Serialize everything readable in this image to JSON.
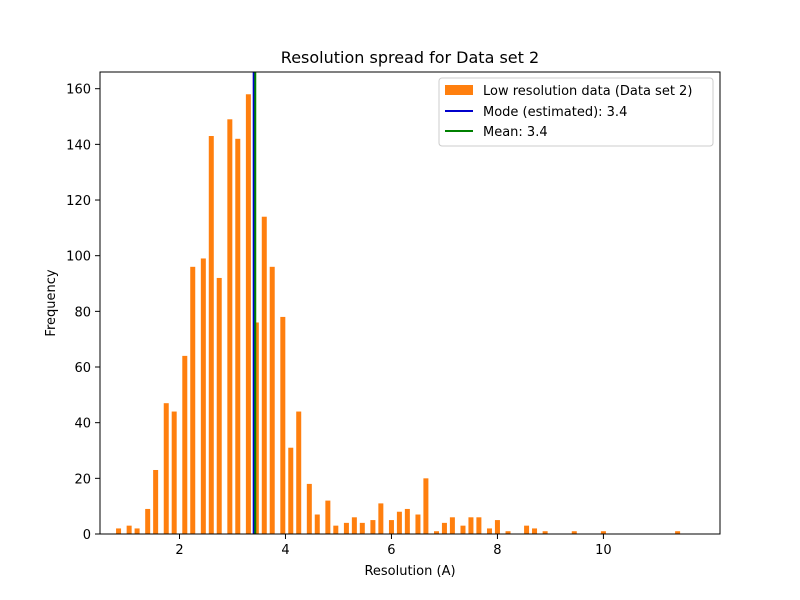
{
  "chart_data": {
    "type": "bar",
    "title": "Resolution spread for Data set 2",
    "xlabel": "Resolution (A)",
    "ylabel": "Frequency",
    "xlim": [
      0.5,
      12.2
    ],
    "ylim": [
      0,
      166
    ],
    "xticks": [
      2,
      4,
      6,
      8,
      10
    ],
    "yticks": [
      0,
      20,
      40,
      60,
      80,
      100,
      120,
      140,
      160
    ],
    "grid": false,
    "legend_position": "top-right",
    "colors": {
      "bars": "#ff7f0e",
      "mode": "#0000cc",
      "mean": "#008000"
    },
    "series": [
      {
        "name": "Low resolution data (Data set 2)",
        "x": [
          0.85,
          1.05,
          1.2,
          1.4,
          1.55,
          1.75,
          1.9,
          2.1,
          2.25,
          2.45,
          2.6,
          2.75,
          2.95,
          3.1,
          3.3,
          3.45,
          3.6,
          3.75,
          3.95,
          4.1,
          4.25,
          4.45,
          4.6,
          4.8,
          4.95,
          5.15,
          5.3,
          5.45,
          5.65,
          5.8,
          6.0,
          6.15,
          6.3,
          6.5,
          6.65,
          6.85,
          7.0,
          7.15,
          7.35,
          7.5,
          7.65,
          7.85,
          8.0,
          8.2,
          8.55,
          8.7,
          8.9,
          9.45,
          10.0,
          11.4
        ],
        "values": [
          2,
          3,
          2,
          9,
          23,
          47,
          44,
          64,
          96,
          99,
          143,
          92,
          149,
          142,
          158,
          76,
          114,
          96,
          78,
          31,
          44,
          18,
          7,
          12,
          3,
          4,
          6,
          4,
          5,
          11,
          5,
          8,
          9,
          7,
          20,
          1,
          4,
          6,
          3,
          6,
          6,
          2,
          5,
          1,
          3,
          2,
          1,
          1,
          1,
          1
        ]
      }
    ],
    "lines": [
      {
        "name": "Mode (estimated): 3.4",
        "x": 3.4
      },
      {
        "name": "Mean: 3.4",
        "x": 3.43
      }
    ]
  }
}
